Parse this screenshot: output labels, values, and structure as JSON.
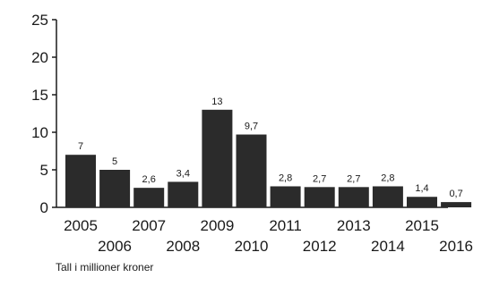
{
  "chart_data": {
    "type": "bar",
    "categories": [
      "2005",
      "2006",
      "2007",
      "2008",
      "2009",
      "2010",
      "2011",
      "2012",
      "2013",
      "2014",
      "2015",
      "2016"
    ],
    "values": [
      7,
      5,
      2.6,
      3.4,
      13,
      9.7,
      2.8,
      2.7,
      2.7,
      2.8,
      1.4,
      0.7
    ],
    "data_labels": [
      "7",
      "5",
      "2,6",
      "3,4",
      "13",
      "9,7",
      "2,8",
      "2,7",
      "2,7",
      "2,8",
      "1,4",
      "0,7"
    ],
    "y_ticks": [
      "0",
      "5",
      "10",
      "15",
      "20",
      "25"
    ],
    "ylim": [
      0,
      25
    ],
    "grid": false,
    "bar_color": "#2b2b2b",
    "footnote": "Tall i millioner kroner"
  }
}
